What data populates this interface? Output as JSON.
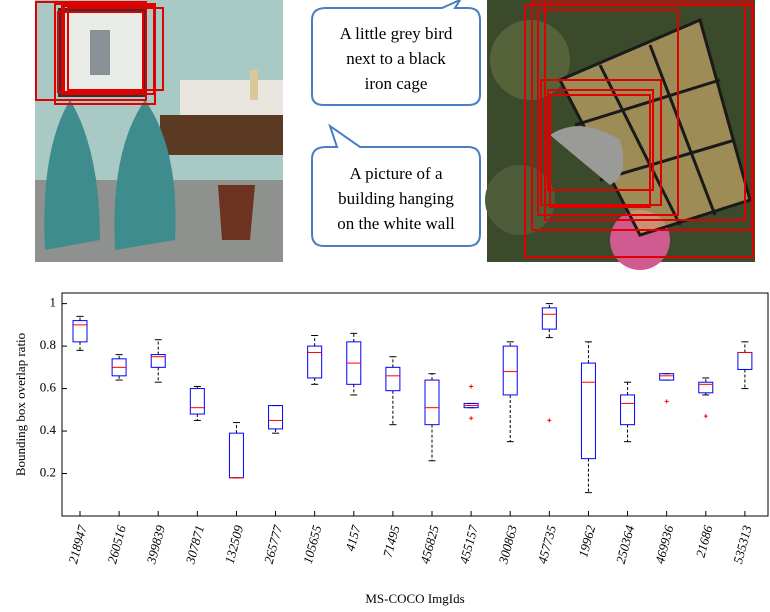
{
  "captions": [
    [
      "A little grey bird",
      "next to a black",
      "iron cage"
    ],
    [
      "A picture of a",
      "building hanging",
      "on the white wall"
    ]
  ],
  "chart_data": {
    "type": "box",
    "x_label": "MS-COCO ImgIds",
    "y_label": "Bounding box overlap ratio",
    "categories": [
      "218947",
      "260516",
      "399839",
      "307871",
      "132509",
      "265777",
      "105655",
      "4157",
      "71495",
      "456825",
      "455157",
      "300863",
      "457735",
      "19962",
      "250364",
      "469936",
      "21686",
      "535313"
    ],
    "boxes": [
      {
        "whisker_low": 0.78,
        "q1": 0.82,
        "median": 0.9,
        "q3": 0.92,
        "whisker_high": 0.94,
        "outliers": []
      },
      {
        "whisker_low": 0.64,
        "q1": 0.66,
        "median": 0.7,
        "q3": 0.74,
        "whisker_high": 0.76,
        "outliers": []
      },
      {
        "whisker_low": 0.63,
        "q1": 0.7,
        "median": 0.75,
        "q3": 0.76,
        "whisker_high": 0.83,
        "outliers": []
      },
      {
        "whisker_low": 0.45,
        "q1": 0.48,
        "median": 0.51,
        "q3": 0.6,
        "whisker_high": 0.61,
        "outliers": []
      },
      {
        "whisker_low": 0.18,
        "q1": 0.18,
        "median": 0.18,
        "q3": 0.39,
        "whisker_high": 0.44,
        "outliers": []
      },
      {
        "whisker_low": 0.39,
        "q1": 0.41,
        "median": 0.45,
        "q3": 0.52,
        "whisker_high": 0.52,
        "outliers": []
      },
      {
        "whisker_low": 0.62,
        "q1": 0.65,
        "median": 0.77,
        "q3": 0.8,
        "whisker_high": 0.85,
        "outliers": []
      },
      {
        "whisker_low": 0.57,
        "q1": 0.62,
        "median": 0.72,
        "q3": 0.82,
        "whisker_high": 0.86,
        "outliers": []
      },
      {
        "whisker_low": 0.43,
        "q1": 0.59,
        "median": 0.66,
        "q3": 0.7,
        "whisker_high": 0.75,
        "outliers": []
      },
      {
        "whisker_low": 0.26,
        "q1": 0.43,
        "median": 0.51,
        "q3": 0.64,
        "whisker_high": 0.67,
        "outliers": []
      },
      {
        "whisker_low": 0.51,
        "q1": 0.51,
        "median": 0.52,
        "q3": 0.53,
        "whisker_high": 0.53,
        "outliers": [
          0.61,
          0.46
        ]
      },
      {
        "whisker_low": 0.35,
        "q1": 0.57,
        "median": 0.68,
        "q3": 0.8,
        "whisker_high": 0.82,
        "outliers": []
      },
      {
        "whisker_low": 0.84,
        "q1": 0.88,
        "median": 0.95,
        "q3": 0.98,
        "whisker_high": 1.0,
        "outliers": [
          0.45
        ]
      },
      {
        "whisker_low": 0.11,
        "q1": 0.27,
        "median": 0.63,
        "q3": 0.72,
        "whisker_high": 0.82,
        "outliers": []
      },
      {
        "whisker_low": 0.35,
        "q1": 0.43,
        "median": 0.53,
        "q3": 0.57,
        "whisker_high": 0.63,
        "outliers": []
      },
      {
        "whisker_low": 0.64,
        "q1": 0.64,
        "median": 0.66,
        "q3": 0.67,
        "whisker_high": 0.67,
        "outliers": [
          0.54
        ]
      },
      {
        "whisker_low": 0.57,
        "q1": 0.58,
        "median": 0.62,
        "q3": 0.63,
        "whisker_high": 0.65,
        "outliers": [
          0.47
        ]
      },
      {
        "whisker_low": 0.6,
        "q1": 0.69,
        "median": 0.77,
        "q3": 0.77,
        "whisker_high": 0.82,
        "outliers": []
      }
    ],
    "box_color": "#0000ff",
    "median_color": "#ff0000",
    "whisker_color": "#000000",
    "outlier_color": "#ff0000",
    "ylim": [
      0,
      1.05
    ],
    "yticks": [
      0.2,
      0.4,
      0.6,
      0.8,
      1
    ]
  }
}
